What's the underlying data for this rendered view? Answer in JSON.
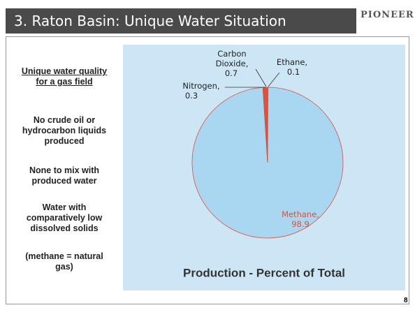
{
  "header": {
    "title": "3. Raton Basin: Unique Water Situation",
    "logo": "PIONEER"
  },
  "sidebar": {
    "heading": "Unique water quality for a gas field",
    "points": [
      "No crude oil or hydrocarbon liquids produced",
      "None to mix with produced water",
      "Water with comparatively low dissolved solids",
      "(methane = natural gas)"
    ]
  },
  "chart_data": {
    "type": "pie",
    "title": "Production - Percent of Total",
    "categories": [
      "Ethane,",
      "Methane,",
      "Nitrogen,",
      "Carbon Dioxide,"
    ],
    "values": [
      0.1,
      98.9,
      0.3,
      0.7
    ],
    "colors": [
      "#e0503a",
      "#a9d6f0",
      "#e0503a",
      "#e0503a"
    ]
  },
  "page_number": "8"
}
